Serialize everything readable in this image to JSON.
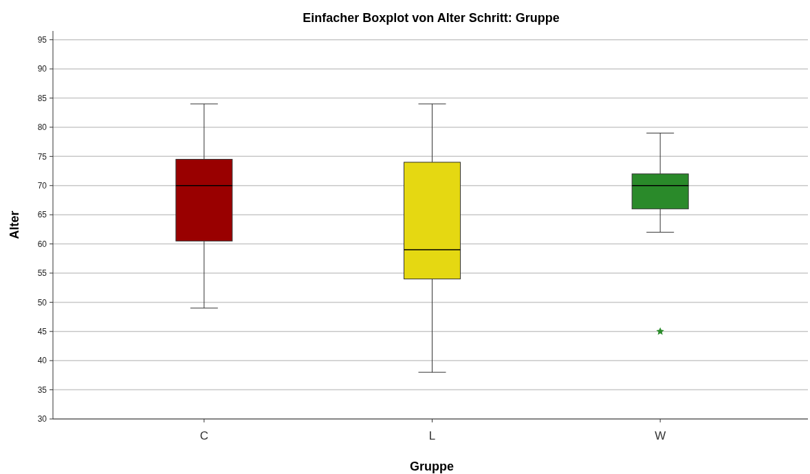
{
  "chart_data": {
    "type": "box",
    "title": "Einfacher Boxplot von Alter Schritt: Gruppe",
    "xlabel": "Gruppe",
    "ylabel": "Alter",
    "categories": [
      "C",
      "L",
      "W"
    ],
    "colors": [
      "#990000",
      "#e5d812",
      "#2a8a2a"
    ],
    "boxes": [
      {
        "low": 49,
        "q1": 60.5,
        "median": 70,
        "q3": 74.5,
        "high": 84
      },
      {
        "low": 38,
        "q1": 54,
        "median": 59,
        "q3": 74,
        "high": 84
      },
      {
        "low": 62,
        "q1": 66,
        "median": 70,
        "q3": 72,
        "high": 79,
        "outliers": [
          45
        ]
      }
    ],
    "marker": "star",
    "ylim": [
      30,
      96.5
    ],
    "yticks": [
      30,
      35,
      40,
      45,
      50,
      55,
      60,
      65,
      70,
      75,
      80,
      85,
      90,
      95
    ],
    "grid": "y"
  }
}
